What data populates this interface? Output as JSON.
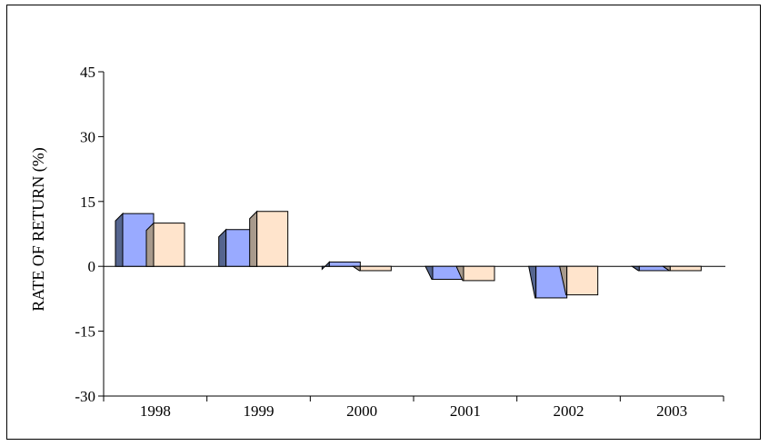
{
  "chart_data": {
    "type": "bar",
    "title": "",
    "xlabel": "",
    "ylabel": "RATE OF RETURN (%)",
    "categories": [
      "1998",
      "1999",
      "2000",
      "2001",
      "2002",
      "2003"
    ],
    "series": [
      {
        "color": "#99aaff",
        "side_color": "#55658f",
        "values": [
          12.2,
          8.5,
          1.0,
          -3.0,
          -7.3,
          -1.0
        ]
      },
      {
        "color": "#ffe4cc",
        "side_color": "#a89a8c",
        "values": [
          10.0,
          12.7,
          -1.0,
          -3.3,
          -6.6,
          -1.0
        ]
      }
    ],
    "ylim": [
      -30,
      45
    ],
    "yticks": [
      45,
      30,
      15,
      0,
      -15,
      -30
    ],
    "grid": false,
    "legend": "none"
  }
}
